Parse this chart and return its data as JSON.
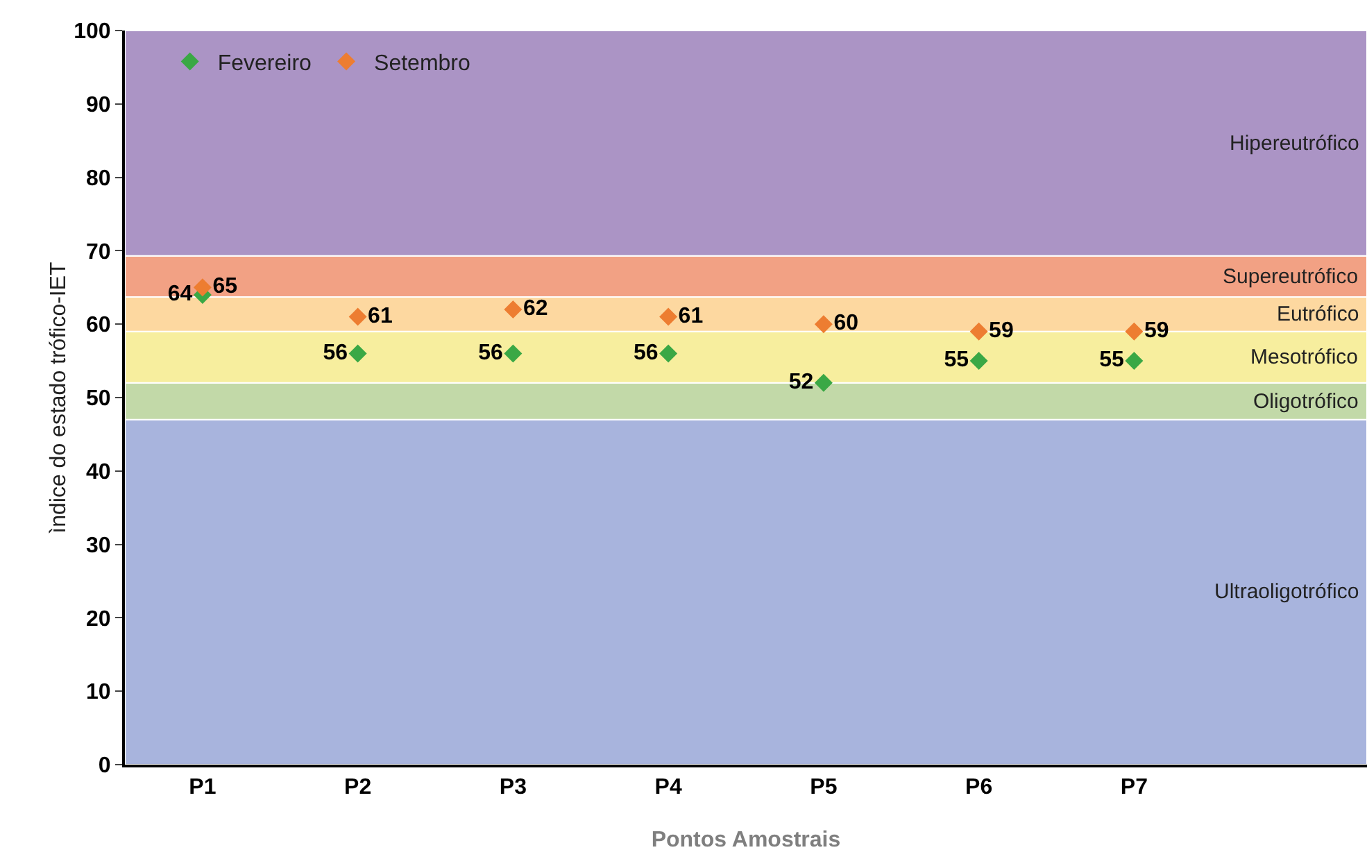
{
  "chart_data": {
    "type": "scatter",
    "xlabel": "Pontos Amostrais",
    "ylabel": "ìndice do estado trófico-IET",
    "categories": [
      "P1",
      "P2",
      "P3",
      "P4",
      "P5",
      "P6",
      "P7"
    ],
    "series": [
      {
        "name": "Fevereiro",
        "color": "#3aa845",
        "values": [
          64,
          56,
          56,
          56,
          52,
          55,
          55
        ]
      },
      {
        "name": "Setembro",
        "color": "#ed7d31",
        "values": [
          65,
          61,
          62,
          61,
          60,
          59,
          59
        ]
      }
    ],
    "ylim": [
      0,
      100
    ],
    "yticks": [
      0,
      10,
      20,
      30,
      40,
      50,
      60,
      70,
      80,
      90,
      100
    ],
    "bands": [
      {
        "axis": "y",
        "from": 0,
        "to": 47,
        "label": "Ultraoligotrófico",
        "color": "#a8b4dd"
      },
      {
        "axis": "y",
        "from": 47,
        "to": 52,
        "label": "Oligotrófico",
        "color": "#c2d9a8"
      },
      {
        "axis": "y",
        "from": 52,
        "to": 59,
        "label": "Mesotrófico",
        "color": "#f7ee9e"
      },
      {
        "axis": "y",
        "from": 59,
        "to": 63.7,
        "label": "Eutrófico",
        "color": "#fdd8a0"
      },
      {
        "axis": "y",
        "from": 63.7,
        "to": 69.3,
        "label": "Supereutrófico",
        "color": "#f2a184"
      },
      {
        "axis": "y",
        "from": 69.3,
        "to": 100,
        "label": "Hipereutrófico",
        "color": "#ab94c5"
      }
    ],
    "marker": "diamond",
    "data_labels": true,
    "legend": "top left",
    "grid": false
  }
}
